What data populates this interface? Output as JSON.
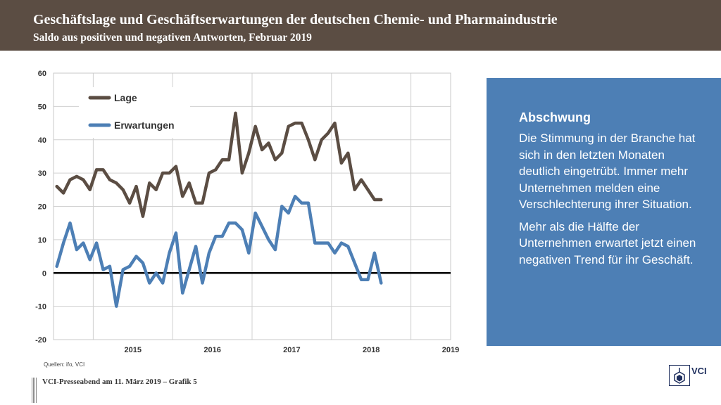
{
  "header": {
    "title": "Geschäftslage und Geschäftserwartungen der deutschen Chemie- und Pharmaindustrie",
    "subtitle": "Saldo aus positiven und negativen Antworten, Februar 2019"
  },
  "chart_data": {
    "type": "line",
    "ylim": [
      -20,
      60
    ],
    "yticks": [
      -20,
      -10,
      0,
      10,
      20,
      30,
      40,
      50,
      60
    ],
    "ytick_labels": [
      "-20",
      "-10",
      "0",
      "10",
      "20",
      "30",
      "40",
      "50",
      "60"
    ],
    "x_start": "2014-07",
    "xlim_months": [
      "2014-07",
      "2019-06"
    ],
    "year_labels": [
      "2015",
      "2016",
      "2017",
      "2018",
      "2019"
    ],
    "grid": true,
    "legend_position": "top-left",
    "series": [
      {
        "name": "Lage",
        "color": "#5b4d43",
        "values": [
          26,
          24,
          28,
          29,
          28,
          25,
          31,
          31,
          28,
          27,
          25,
          21,
          26,
          17,
          27,
          25,
          30,
          30,
          32,
          23,
          27,
          21,
          21,
          30,
          31,
          34,
          34,
          48,
          30,
          36,
          44,
          37,
          39,
          34,
          36,
          44,
          45,
          45,
          40,
          34,
          40,
          42,
          45,
          33,
          36,
          25,
          28,
          25,
          22,
          22
        ]
      },
      {
        "name": "Erwartungen",
        "color": "#4d7fb5",
        "values": [
          2,
          9,
          15,
          7,
          9,
          4,
          9,
          1,
          2,
          -10,
          1,
          2,
          5,
          3,
          -3,
          0,
          -3,
          6,
          12,
          -6,
          1,
          8,
          -3,
          6,
          11,
          11,
          15,
          15,
          13,
          6,
          18,
          14,
          10,
          7,
          20,
          18,
          23,
          21,
          21,
          9,
          9,
          9,
          6,
          9,
          8,
          3,
          -2,
          -2,
          6,
          -3
        ]
      }
    ]
  },
  "infobox": {
    "title": "Abschwung",
    "para1": "Die Stimmung in der Branche hat sich in den letzten Monaten deutlich eingetrübt. Immer mehr Unternehmen melden eine Verschlechterung ihrer Situation.",
    "para2": "Mehr als die Hälfte der Unternehmen erwartet jetzt einen negativen Trend für ihr Geschäft."
  },
  "source": "Quellen: ifo, VCI",
  "footer": "VCI-Presseabend am 11. März 2019 – Grafik 5",
  "logo_text": "VCI"
}
